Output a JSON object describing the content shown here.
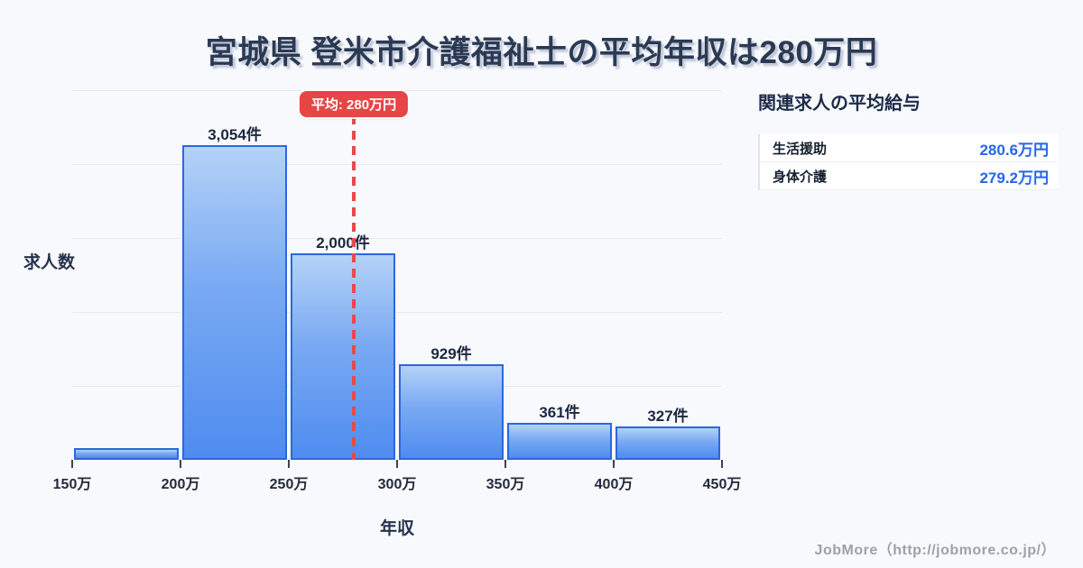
{
  "page": {
    "title": "宮城県 登米市介護福祉士の平均年収は280万円",
    "footer_credit": "JobMore（http://jobmore.co.jp/）"
  },
  "chart_data": {
    "type": "bar",
    "title": "宮城県 登米市介護福祉士の平均年収は280万円",
    "xlabel": "年収",
    "ylabel": "求人数",
    "x_tick_labels": [
      "150万",
      "200万",
      "250万",
      "300万",
      "350万",
      "400万",
      "450万"
    ],
    "x_range_man": [
      150,
      450
    ],
    "bin_width_man": 50,
    "bins": [
      {
        "range": "150万-200万",
        "value": 115,
        "label": ""
      },
      {
        "range": "200万-250万",
        "value": 3054,
        "label": "3,054件"
      },
      {
        "range": "250万-300万",
        "value": 2000,
        "label": "2,000件"
      },
      {
        "range": "300万-350万",
        "value": 929,
        "label": "929件"
      },
      {
        "range": "350万-400万",
        "value": 361,
        "label": "361件"
      },
      {
        "range": "400万-450万",
        "value": 327,
        "label": "327件"
      }
    ],
    "average_line": {
      "x_value_man": 280,
      "badge_label": "平均: 280万円"
    },
    "grid": "horizontal",
    "gridline_count": 5,
    "legend": "none"
  },
  "side_panel": {
    "title": "関連求人の平均給与",
    "rows": [
      {
        "label": "生活援助",
        "value": "280.6万円"
      },
      {
        "label": "身体介護",
        "value": "279.2万円"
      }
    ]
  },
  "colors": {
    "background": "#f8f9fc",
    "title_text": "#2b3a52",
    "bar_fill_top": "#b3d2f7",
    "bar_fill_bottom": "#4f8cf0",
    "bar_border": "#2a68e0",
    "average_red": "#e74646",
    "panel_value_blue": "#2467eb",
    "gridline": "#e5e9f2",
    "footer_text": "#9ba2ac"
  }
}
